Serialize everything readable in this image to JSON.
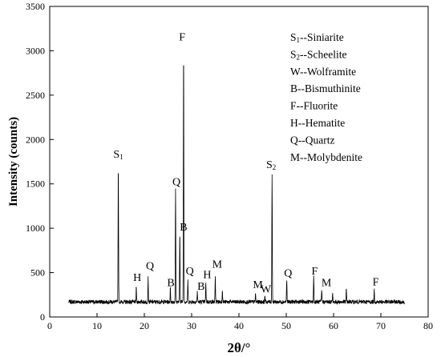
{
  "chart_data": {
    "type": "line",
    "title": "",
    "xlabel": "2θ/°",
    "ylabel": "Intensity (counts)",
    "xlim": [
      0,
      80
    ],
    "ylim": [
      0,
      3500
    ],
    "x_ticks": [
      "0",
      "10",
      "20",
      "30",
      "40",
      "50",
      "60",
      "70",
      "80"
    ],
    "y_ticks": [
      "0",
      "500",
      "1000",
      "1500",
      "2000",
      "2500",
      "3000",
      "3500"
    ],
    "grid": false,
    "baseline": 170,
    "x_range": [
      4,
      75
    ],
    "series": [
      {
        "peaks": [
          {
            "x": 14.5,
            "y": 1740
          },
          {
            "x": 18.3,
            "y": 330
          },
          {
            "x": 20.8,
            "y": 440
          },
          {
            "x": 25.5,
            "y": 320
          },
          {
            "x": 26.6,
            "y": 1450
          },
          {
            "x": 27.5,
            "y": 960
          },
          {
            "x": 28.3,
            "y": 3060
          },
          {
            "x": 29.2,
            "y": 420
          },
          {
            "x": 31.2,
            "y": 290
          },
          {
            "x": 33.0,
            "y": 380
          },
          {
            "x": 35.0,
            "y": 440
          },
          {
            "x": 36.5,
            "y": 310
          },
          {
            "x": 43.5,
            "y": 260
          },
          {
            "x": 45.5,
            "y": 240
          },
          {
            "x": 47.0,
            "y": 1620
          },
          {
            "x": 50.1,
            "y": 420
          },
          {
            "x": 55.8,
            "y": 460
          },
          {
            "x": 57.5,
            "y": 300
          },
          {
            "x": 59.8,
            "y": 260
          },
          {
            "x": 62.7,
            "y": 310
          },
          {
            "x": 68.6,
            "y": 300
          }
        ]
      }
    ],
    "annotations": [
      {
        "base": "S",
        "sub": "1",
        "x": 14.5,
        "y": 1760
      },
      {
        "base": "H",
        "sub": "",
        "x": 18.5,
        "y": 370
      },
      {
        "base": "Q",
        "sub": "",
        "x": 21.2,
        "y": 500
      },
      {
        "base": "B",
        "sub": "",
        "x": 25.6,
        "y": 310
      },
      {
        "base": "Q",
        "sub": "",
        "x": 26.8,
        "y": 1450
      },
      {
        "base": "F",
        "sub": "",
        "x": 28.0,
        "y": 3080
      },
      {
        "base": "B",
        "sub": "",
        "x": 28.3,
        "y": 940
      },
      {
        "base": "Q",
        "sub": "",
        "x": 29.6,
        "y": 440
      },
      {
        "base": "B",
        "sub": "",
        "x": 32.0,
        "y": 270
      },
      {
        "base": "H",
        "sub": "",
        "x": 33.3,
        "y": 400
      },
      {
        "base": "M",
        "sub": "",
        "x": 35.4,
        "y": 520
      },
      {
        "base": "M",
        "sub": "",
        "x": 44.0,
        "y": 290
      },
      {
        "base": "W",
        "sub": "",
        "x": 45.7,
        "y": 240
      },
      {
        "base": "S",
        "sub": "2",
        "x": 46.8,
        "y": 1640
      },
      {
        "base": "Q",
        "sub": "",
        "x": 50.4,
        "y": 420
      },
      {
        "base": "F",
        "sub": "",
        "x": 56.0,
        "y": 440
      },
      {
        "base": "M",
        "sub": "",
        "x": 58.5,
        "y": 310
      },
      {
        "base": "F",
        "sub": "",
        "x": 68.9,
        "y": 320
      }
    ],
    "legend": {
      "placement": "top-right",
      "entries": [
        {
          "sym": "S",
          "sub": "1",
          "text": "--Siniarite"
        },
        {
          "sym": "S",
          "sub": "2",
          "text": "--Scheelite"
        },
        {
          "sym": "W",
          "sub": "",
          "text": "--Wolframite"
        },
        {
          "sym": "B",
          "sub": "",
          "text": "--Bismuthinite"
        },
        {
          "sym": "F",
          "sub": "",
          "text": "--Fluorite"
        },
        {
          "sym": "H",
          "sub": "",
          "text": "--Hematite"
        },
        {
          "sym": "Q",
          "sub": "",
          "text": "--Quartz"
        },
        {
          "sym": "M",
          "sub": "",
          "text": "--Molybdenite"
        }
      ]
    }
  }
}
